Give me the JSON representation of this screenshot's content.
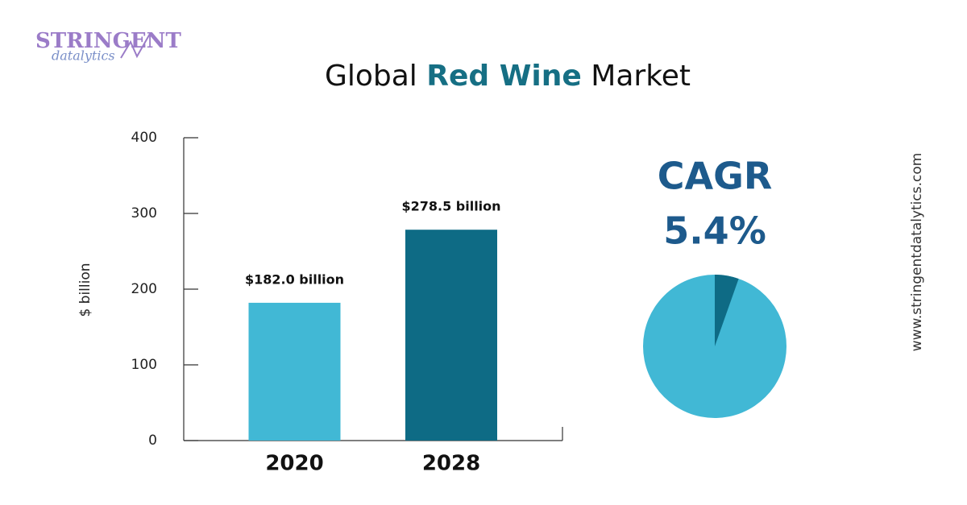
{
  "logo": {
    "name": "STRINGENT",
    "tagline": "datalytics"
  },
  "website": "www.stringentdatalytics.com",
  "chart_data": [
    {
      "type": "bar",
      "title": [
        "Global",
        "Red Wine",
        "Market"
      ],
      "y_label": "$ billion",
      "categories": [
        "2020",
        "2028"
      ],
      "values": [
        182.0,
        278.5
      ],
      "value_labels": [
        "$182.0 billion",
        "$278.5 billion"
      ],
      "colors": [
        "#41b8d5",
        "#0e6b85"
      ],
      "ylim": [
        0,
        400
      ],
      "yticks": [
        0,
        100,
        200,
        300,
        400
      ]
    },
    {
      "type": "pie",
      "title": "CAGR",
      "values": [
        5.4
      ],
      "value_labels": [
        "5.4%"
      ],
      "colors": [
        "#0e6b85"
      ]
    }
  ]
}
